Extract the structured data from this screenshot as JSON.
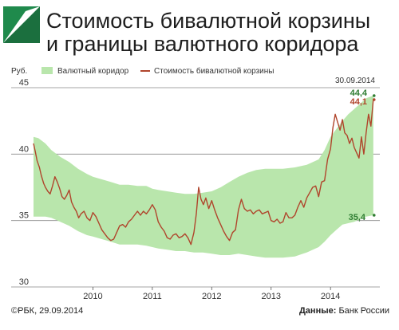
{
  "header": {
    "title_line1": "Стоимость бивалютной корзины",
    "title_line2": "и границы валютного коридора",
    "brand_color": "#1f8a4c"
  },
  "footer": {
    "source_left": "©РБК, 29.09.2014",
    "data_label": "Данные:",
    "data_source": "Банк России"
  },
  "chart_data": {
    "type": "area",
    "ylabel": "Руб.",
    "ylim": [
      30,
      45
    ],
    "yticks": [
      30,
      35,
      40,
      45
    ],
    "xlim": [
      2009.0,
      2014.75
    ],
    "xticks": [
      {
        "value": 2010.0,
        "label": "2010"
      },
      {
        "value": 2011.0,
        "label": "2011"
      },
      {
        "value": 2012.0,
        "label": "2012"
      },
      {
        "value": 2013.0,
        "label": "2013"
      },
      {
        "value": 2014.0,
        "label": "2014"
      }
    ],
    "grid": "horizontal",
    "legend_position": "top",
    "series": [
      {
        "name": "Валютный коридор",
        "type": "band",
        "color": "#b9e6ac",
        "x": [
          2009.0,
          2009.08,
          2009.2,
          2009.3,
          2009.45,
          2009.6,
          2009.75,
          2009.9,
          2010.0,
          2010.15,
          2010.3,
          2010.45,
          2010.6,
          2010.75,
          2010.9,
          2011.0,
          2011.1,
          2011.25,
          2011.4,
          2011.55,
          2011.7,
          2011.85,
          2012.0,
          2012.15,
          2012.3,
          2012.45,
          2012.6,
          2012.75,
          2012.9,
          2013.0,
          2013.2,
          2013.4,
          2013.6,
          2013.8,
          2013.9,
          2014.0,
          2014.1,
          2014.2,
          2014.3,
          2014.4,
          2014.5,
          2014.6,
          2014.72
        ],
        "lower": [
          35.3,
          35.3,
          35.3,
          35.2,
          34.9,
          34.6,
          34.2,
          33.9,
          33.8,
          33.6,
          33.4,
          33.2,
          33.2,
          33.2,
          33.1,
          33.0,
          32.9,
          32.8,
          32.7,
          32.7,
          32.6,
          32.6,
          32.5,
          32.4,
          32.4,
          32.5,
          32.4,
          32.3,
          32.2,
          32.2,
          32.2,
          32.3,
          32.6,
          33.0,
          33.4,
          33.9,
          34.3,
          34.7,
          34.8,
          34.9,
          35.1,
          35.3,
          35.4
        ],
        "upper": [
          41.3,
          41.2,
          40.8,
          40.3,
          39.8,
          39.4,
          38.9,
          38.5,
          38.3,
          38.1,
          37.9,
          37.7,
          37.7,
          37.6,
          37.6,
          37.4,
          37.3,
          37.2,
          37.1,
          37.0,
          37.0,
          37.1,
          37.2,
          37.5,
          37.9,
          38.3,
          38.6,
          38.8,
          38.9,
          38.9,
          38.9,
          39.0,
          39.2,
          39.6,
          40.3,
          41.3,
          41.9,
          42.5,
          43.0,
          43.4,
          43.8,
          44.2,
          44.4
        ]
      },
      {
        "name": "Стоимость бивалютной корзины",
        "type": "line",
        "color": "#b0452c",
        "x": [
          2009.0,
          2009.03,
          2009.06,
          2009.1,
          2009.13,
          2009.17,
          2009.2,
          2009.24,
          2009.28,
          2009.32,
          2009.36,
          2009.4,
          2009.44,
          2009.48,
          2009.52,
          2009.56,
          2009.6,
          2009.64,
          2009.68,
          2009.72,
          2009.76,
          2009.8,
          2009.85,
          2009.9,
          2009.95,
          2010.0,
          2010.05,
          2010.1,
          2010.15,
          2010.2,
          2010.25,
          2010.3,
          2010.35,
          2010.4,
          2010.45,
          2010.5,
          2010.55,
          2010.6,
          2010.65,
          2010.7,
          2010.75,
          2010.8,
          2010.85,
          2010.9,
          2010.95,
          2011.0,
          2011.05,
          2011.1,
          2011.15,
          2011.2,
          2011.25,
          2011.3,
          2011.35,
          2011.4,
          2011.45,
          2011.5,
          2011.55,
          2011.6,
          2011.65,
          2011.7,
          2011.74,
          2011.78,
          2011.82,
          2011.86,
          2011.9,
          2011.95,
          2012.0,
          2012.05,
          2012.1,
          2012.15,
          2012.2,
          2012.25,
          2012.3,
          2012.35,
          2012.4,
          2012.45,
          2012.5,
          2012.55,
          2012.6,
          2012.65,
          2012.7,
          2012.75,
          2012.8,
          2012.85,
          2012.9,
          2012.95,
          2013.0,
          2013.05,
          2013.1,
          2013.15,
          2013.2,
          2013.25,
          2013.3,
          2013.35,
          2013.4,
          2013.45,
          2013.5,
          2013.55,
          2013.6,
          2013.65,
          2013.7,
          2013.75,
          2013.8,
          2013.85,
          2013.9,
          2013.95,
          2014.0,
          2014.04,
          2014.08,
          2014.12,
          2014.16,
          2014.2,
          2014.24,
          2014.28,
          2014.32,
          2014.36,
          2014.4,
          2014.44,
          2014.48,
          2014.52,
          2014.56,
          2014.6,
          2014.64,
          2014.68,
          2014.72
        ],
        "values": [
          40.8,
          40.2,
          39.5,
          39.0,
          38.4,
          37.8,
          37.5,
          37.2,
          37.0,
          37.6,
          38.3,
          37.9,
          37.4,
          36.8,
          36.6,
          36.9,
          37.3,
          36.4,
          36.0,
          35.7,
          35.2,
          35.5,
          35.7,
          35.2,
          35.0,
          35.6,
          35.3,
          34.8,
          34.3,
          34.0,
          33.7,
          33.5,
          33.6,
          34.1,
          34.6,
          34.7,
          34.5,
          34.9,
          35.1,
          35.4,
          35.7,
          35.4,
          35.7,
          35.5,
          35.8,
          36.2,
          35.8,
          34.9,
          34.5,
          34.2,
          33.7,
          33.6,
          33.9,
          34.0,
          33.7,
          33.8,
          34.0,
          33.7,
          33.2,
          34.1,
          35.5,
          37.5,
          36.6,
          36.2,
          36.7,
          35.9,
          36.5,
          35.8,
          35.2,
          34.7,
          34.2,
          33.8,
          33.5,
          34.1,
          34.3,
          35.8,
          36.6,
          35.9,
          35.7,
          35.8,
          35.5,
          35.7,
          35.8,
          35.5,
          35.6,
          35.7,
          35.0,
          34.9,
          35.1,
          34.8,
          34.9,
          35.6,
          35.2,
          35.2,
          35.4,
          36.0,
          36.5,
          36.0,
          36.7,
          37.1,
          37.5,
          37.6,
          36.8,
          37.9,
          38.0,
          39.6,
          40.4,
          42.0,
          43.0,
          42.4,
          41.8,
          42.6,
          41.6,
          41.4,
          40.8,
          41.2,
          40.5,
          40.1,
          39.7,
          41.3,
          40.0,
          41.6,
          43.0,
          42.1,
          44.1
        ]
      }
    ],
    "annotations": {
      "date": "30.09.2014",
      "upper_end": {
        "label": "44,4",
        "value": 44.4,
        "color": "#2f7d32"
      },
      "series_end": {
        "label": "44,1",
        "value": 44.1,
        "color": "#b0452c"
      },
      "lower_end": {
        "label": "35,4",
        "value": 35.4,
        "color": "#2f7d32"
      }
    }
  }
}
